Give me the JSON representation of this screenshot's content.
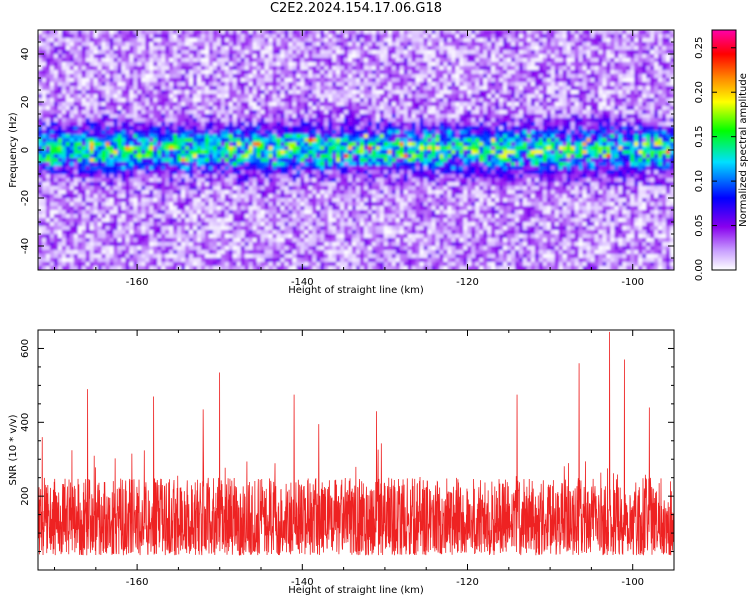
{
  "title": "C2E2.2024.154.17.06.G18",
  "chart_data": [
    {
      "type": "heatmap",
      "xlabel": "Height of straight line (km)",
      "ylabel": "Frequency (Hz)",
      "xlim": [
        -172,
        -95
      ],
      "ylim": [
        -50,
        50
      ],
      "x_ticks": [
        -160,
        -140,
        -120,
        -100
      ],
      "y_ticks": [
        -40,
        -20,
        0,
        20,
        40
      ],
      "colorbar": {
        "label": "Normalized spectral amplitude",
        "range": [
          0,
          0.27
        ],
        "ticks": [
          "0.00",
          "0.05",
          "0.10",
          "0.15",
          "0.20",
          "0.25"
        ],
        "colormap": [
          "#ffffff",
          "#8800ee",
          "#0000ff",
          "#00e0ff",
          "#00ff00",
          "#ffff00",
          "#ff8800",
          "#ff0000",
          "#ff00aa"
        ]
      },
      "grid": false,
      "description_band": {
        "center_hz": 0,
        "halfwidth_hz": 10,
        "peak_amplitude": 0.26
      },
      "background_amplitude": [
        0.0,
        0.05
      ]
    },
    {
      "type": "line",
      "xlabel": "Height of straight line (km)",
      "ylabel": "SNR (10 * v/v)",
      "xlim": [
        -172,
        -95
      ],
      "ylim": [
        0,
        650
      ],
      "x_ticks": [
        -160,
        -140,
        -120,
        -100
      ],
      "y_ticks": [
        200,
        400,
        600
      ],
      "color": "#ee2222",
      "typical_range": [
        40,
        250
      ],
      "peaks": [
        {
          "x": -171.5,
          "y": 360
        },
        {
          "x": -166,
          "y": 490
        },
        {
          "x": -158,
          "y": 470
        },
        {
          "x": -152,
          "y": 435
        },
        {
          "x": -150,
          "y": 535
        },
        {
          "x": -141,
          "y": 475
        },
        {
          "x": -138,
          "y": 395
        },
        {
          "x": -131,
          "y": 430
        },
        {
          "x": -114,
          "y": 475
        },
        {
          "x": -106.5,
          "y": 560
        },
        {
          "x": -102.8,
          "y": 645
        },
        {
          "x": -101,
          "y": 570
        },
        {
          "x": -98,
          "y": 440
        }
      ]
    }
  ]
}
